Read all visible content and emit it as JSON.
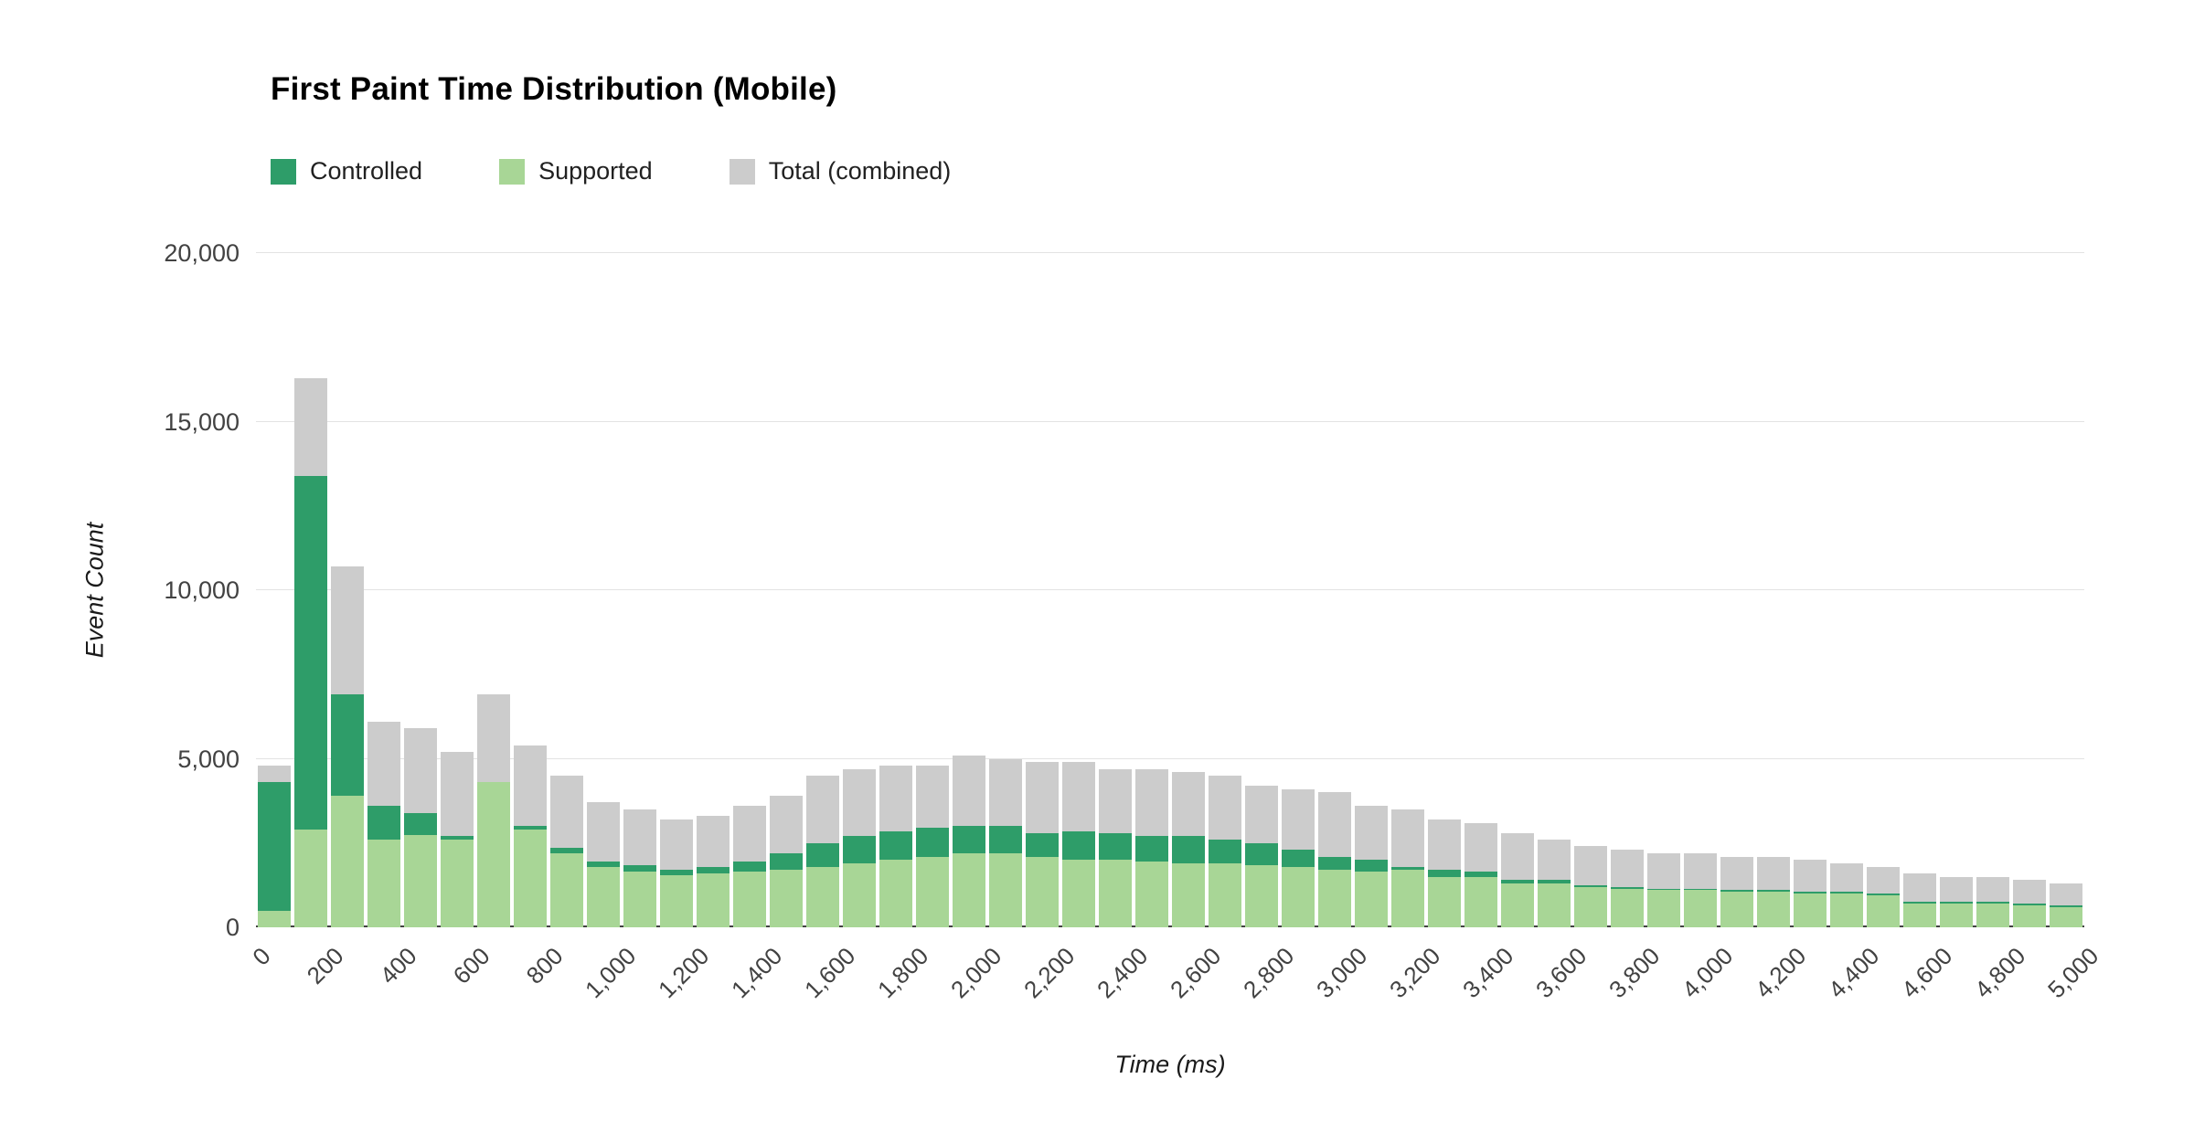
{
  "title": "First Paint Time Distribution (Mobile)",
  "legend": [
    {
      "label": "Controlled",
      "color": "#2e9d69"
    },
    {
      "label": "Supported",
      "color": "#a8d696"
    },
    {
      "label": "Total (combined)",
      "color": "#cccccc"
    }
  ],
  "axes": {
    "y_title": "Event Count",
    "x_title": "Time (ms)",
    "y_ticks": [
      "0",
      "5,000",
      "10,000",
      "15,000",
      "20,000"
    ],
    "x_tick_labels": [
      "0",
      "200",
      "400",
      "600",
      "800",
      "1,000",
      "1,200",
      "1,400",
      "1,600",
      "1,800",
      "2,000",
      "2,200",
      "2,400",
      "2,600",
      "2,800",
      "3,000",
      "3,200",
      "3,400",
      "3,600",
      "3,800",
      "4,000",
      "4,200",
      "4,400",
      "4,600",
      "4,800",
      "5,000"
    ]
  },
  "chart_data": {
    "type": "bar",
    "stacked": true,
    "title": "First Paint Time Distribution (Mobile)",
    "xlabel": "Time (ms)",
    "ylabel": "Event Count",
    "xlim": [
      0,
      5000
    ],
    "ylim": [
      0,
      20000
    ],
    "bin_width_ms": 100,
    "grid": true,
    "legend_position": "top-left",
    "x": [
      0,
      100,
      200,
      300,
      400,
      500,
      600,
      700,
      800,
      900,
      1000,
      1100,
      1200,
      1300,
      1400,
      1500,
      1600,
      1700,
      1800,
      1900,
      2000,
      2100,
      2200,
      2300,
      2400,
      2500,
      2600,
      2700,
      2800,
      2900,
      3000,
      3100,
      3200,
      3300,
      3400,
      3500,
      3600,
      3700,
      3800,
      3900,
      4000,
      4100,
      4200,
      4300,
      4400,
      4500,
      4600,
      4700,
      4800,
      4900
    ],
    "series": [
      {
        "name": "Controlled",
        "color": "#2e9d69",
        "values": [
          3800,
          10500,
          3000,
          1000,
          650,
          100,
          0,
          100,
          150,
          150,
          200,
          150,
          200,
          300,
          500,
          700,
          800,
          850,
          850,
          800,
          800,
          700,
          850,
          800,
          750,
          800,
          700,
          650,
          500,
          400,
          350,
          100,
          200,
          150,
          100,
          100,
          50,
          50,
          50,
          50,
          50,
          50,
          50,
          50,
          50,
          50,
          50,
          50,
          50,
          50
        ]
      },
      {
        "name": "Supported",
        "color": "#a8d696",
        "values": [
          500,
          2900,
          3900,
          2600,
          2750,
          2600,
          4300,
          2900,
          2200,
          1800,
          1650,
          1550,
          1600,
          1650,
          1700,
          1800,
          1900,
          2000,
          2100,
          2200,
          2200,
          2100,
          2000,
          2000,
          1950,
          1900,
          1900,
          1850,
          1800,
          1700,
          1650,
          1700,
          1500,
          1500,
          1300,
          1300,
          1200,
          1150,
          1100,
          1100,
          1050,
          1050,
          1000,
          1000,
          950,
          700,
          700,
          700,
          650,
          600
        ]
      },
      {
        "name": "Total (combined)",
        "color": "#cccccc",
        "values": [
          4800,
          16300,
          10700,
          6100,
          5900,
          5200,
          6900,
          5400,
          4500,
          3700,
          3500,
          3200,
          3300,
          3600,
          3900,
          4500,
          4700,
          4800,
          4800,
          5100,
          5000,
          4900,
          4900,
          4700,
          4700,
          4600,
          4500,
          4200,
          4100,
          4000,
          3600,
          3500,
          3200,
          3100,
          2800,
          2600,
          2400,
          2300,
          2200,
          2200,
          2100,
          2100,
          2000,
          1900,
          1800,
          1600,
          1500,
          1500,
          1400,
          1300
        ]
      }
    ]
  }
}
